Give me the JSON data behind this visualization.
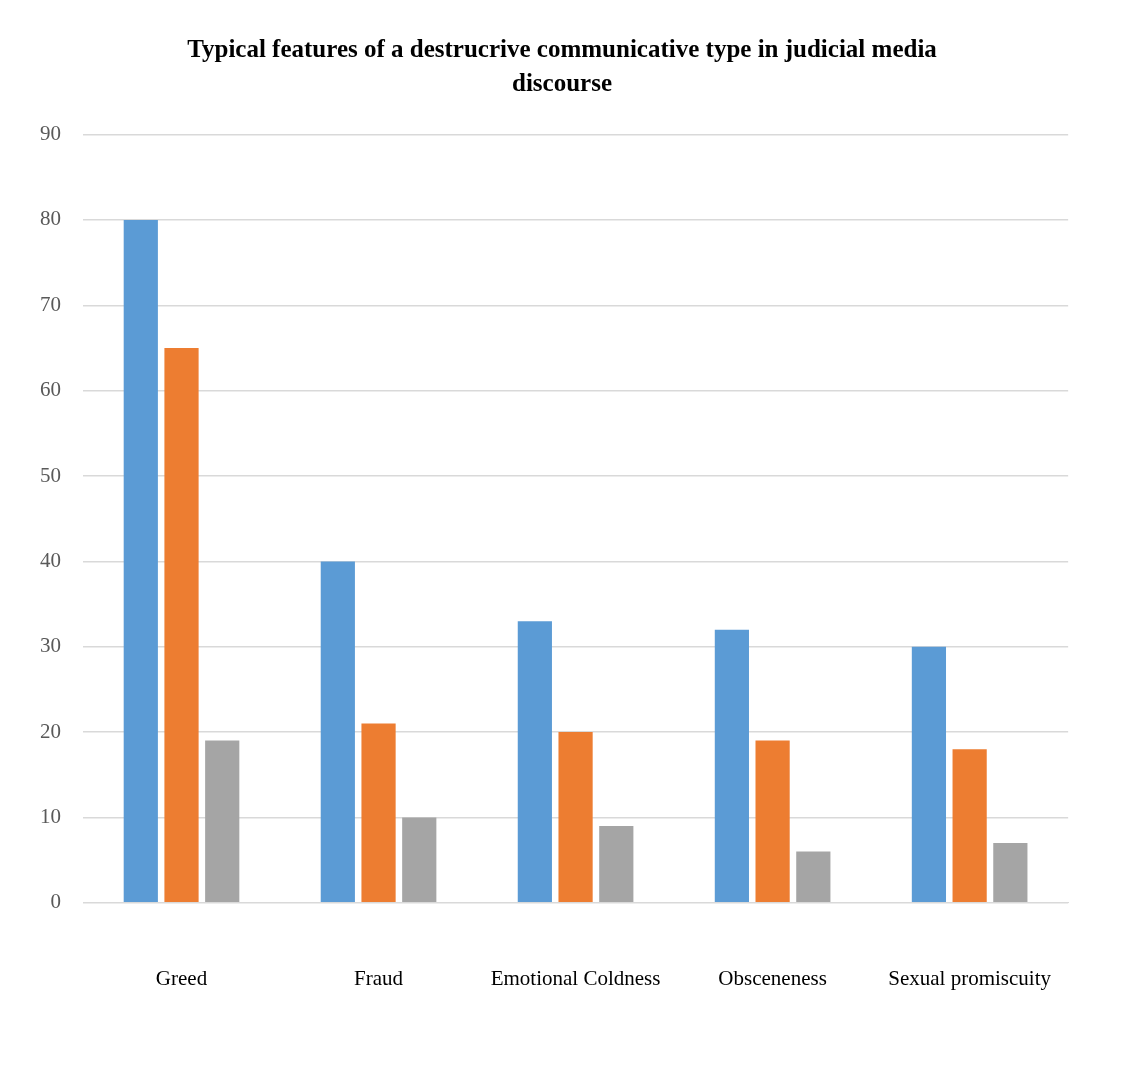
{
  "chart_data": {
    "type": "bar",
    "title": "Typical features  of a destrucrive communicative type in judicial media discourse",
    "categories": [
      "Greed",
      "Fraud",
      "Emotional Coldness",
      "Obsceneness",
      "Sexual promiscuity"
    ],
    "series": [
      {
        "color": "#5b9bd5",
        "values": [
          80,
          40,
          33,
          32,
          30
        ]
      },
      {
        "color": "#ed7d31",
        "values": [
          65,
          21,
          20,
          19,
          18
        ]
      },
      {
        "color": "#a5a5a5",
        "values": [
          19,
          10,
          9,
          6,
          7
        ]
      }
    ],
    "ylim": [
      0,
      90
    ],
    "yticks": [
      0,
      10,
      20,
      30,
      40,
      50,
      60,
      70,
      80,
      90
    ],
    "grid": "y",
    "legend": false
  }
}
